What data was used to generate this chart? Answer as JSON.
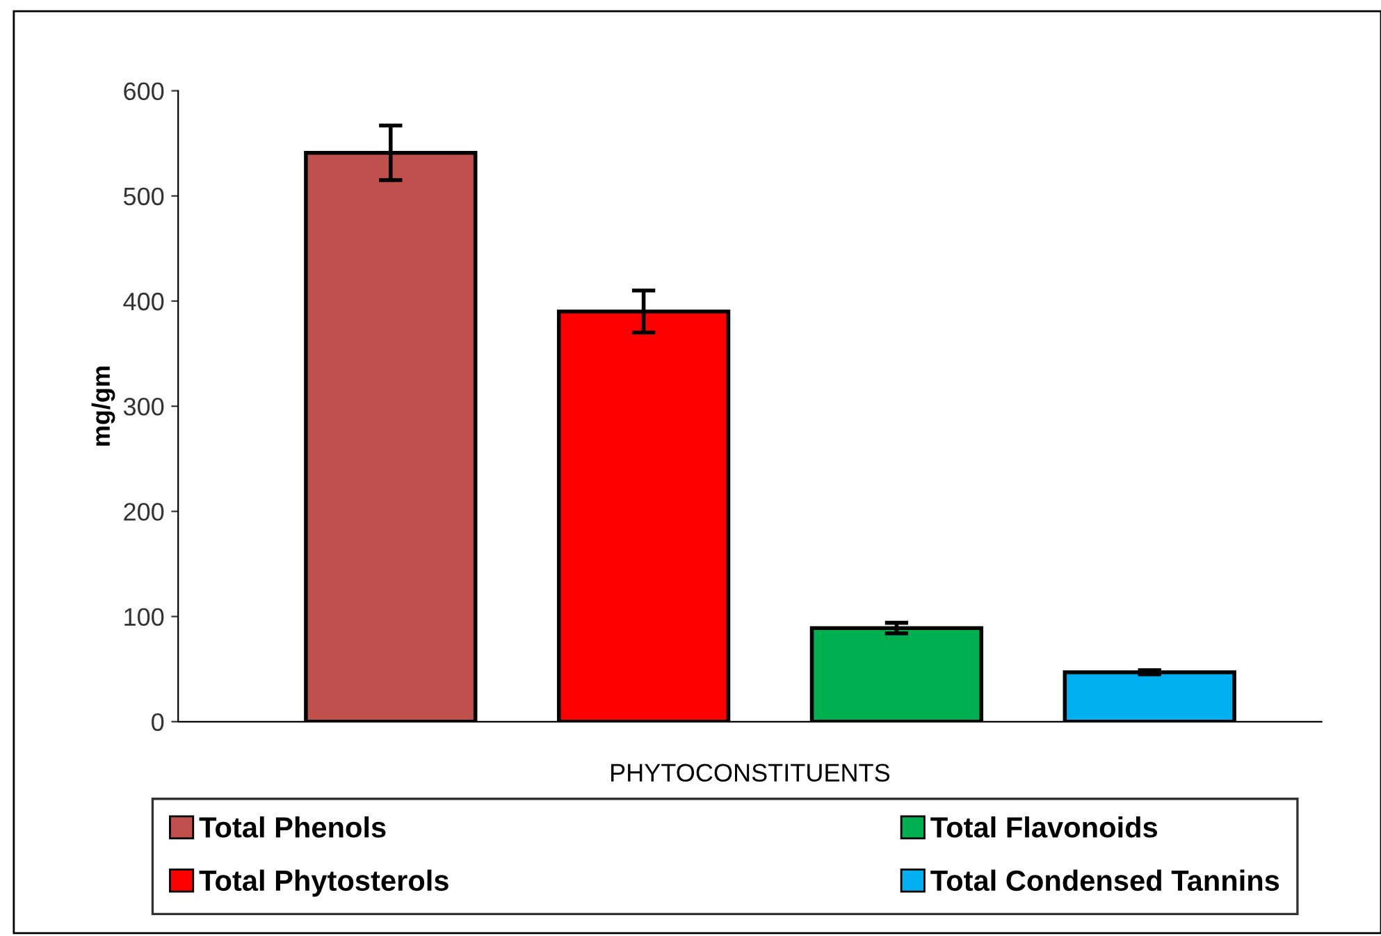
{
  "chart_data": {
    "type": "bar",
    "xlabel": "PHYTOCONSTITUENTS",
    "ylabel": "mg/gm",
    "categories": [
      null,
      null,
      null,
      null
    ],
    "series": [
      {
        "name": "Total Phenols",
        "color": "#c0504d",
        "values": [
          541,
          null,
          null,
          null
        ],
        "errors": [
          26,
          null,
          null,
          null
        ]
      },
      {
        "name": "Total Phytosterols",
        "color": "#ff0000",
        "values": [
          null,
          390,
          null,
          null
        ],
        "errors": [
          null,
          20,
          null,
          null
        ]
      },
      {
        "name": "Total Flavonoids",
        "color": "#00b050",
        "values": [
          null,
          null,
          89,
          null
        ],
        "errors": [
          null,
          null,
          5,
          null
        ]
      },
      {
        "name": "Total Condensed Tannins",
        "color": "#00b0f0",
        "values": [
          null,
          null,
          null,
          47
        ],
        "errors": [
          null,
          null,
          null,
          2
        ]
      }
    ],
    "ylim": [
      0,
      600
    ],
    "yticks": [
      0,
      100,
      200,
      300,
      400,
      500,
      600
    ],
    "grid": false,
    "legend": "bottom"
  }
}
